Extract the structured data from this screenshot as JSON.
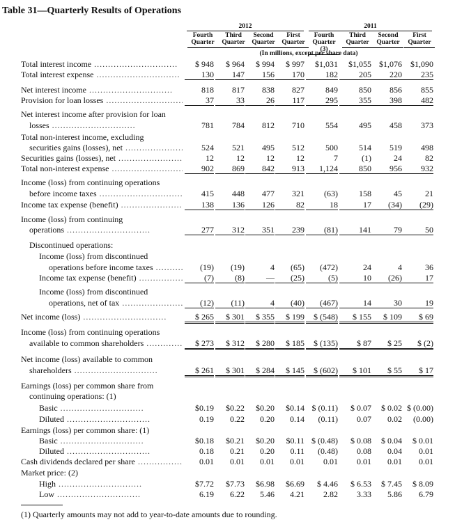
{
  "title": "Table 31—Quarterly Results of Operations",
  "years": [
    "2012",
    "2011"
  ],
  "columns": [
    "Fourth Quarter",
    "Third Quarter",
    "Second Quarter",
    "First Quarter",
    "Fourth Quarter (3)",
    "Third Quarter",
    "Second Quarter",
    "First Quarter"
  ],
  "units_note": "(In millions, except per share data)",
  "rows": [
    {
      "label": "Total interest income",
      "values": [
        "$ 948",
        "$ 964",
        "$ 994",
        "$ 997",
        "$1,031",
        "$1,055",
        "$1,076",
        "$1,090"
      ]
    },
    {
      "label": "Total interest expense",
      "values": [
        "130",
        "147",
        "156",
        "170",
        "182",
        "205",
        "220",
        "235"
      ]
    },
    {
      "label": "Net interest income",
      "values": [
        "818",
        "817",
        "838",
        "827",
        "849",
        "850",
        "856",
        "855"
      ]
    },
    {
      "label": "Provision for loan losses",
      "values": [
        "37",
        "33",
        "26",
        "117",
        "295",
        "355",
        "398",
        "482"
      ]
    },
    {
      "label": "Net interest income after provision for loan",
      "values": []
    },
    {
      "label": "losses",
      "values": [
        "781",
        "784",
        "812",
        "710",
        "554",
        "495",
        "458",
        "373"
      ]
    },
    {
      "label": "Total non-interest income, excluding",
      "values": []
    },
    {
      "label": "securities gains (losses), net",
      "values": [
        "524",
        "521",
        "495",
        "512",
        "500",
        "514",
        "519",
        "498"
      ]
    },
    {
      "label": "Securities gains (losses), net",
      "values": [
        "12",
        "12",
        "12",
        "12",
        "7",
        "(1)",
        "24",
        "82"
      ]
    },
    {
      "label": "Total non-interest expense",
      "values": [
        "902",
        "869",
        "842",
        "913",
        "1,124",
        "850",
        "956",
        "932"
      ]
    },
    {
      "label": "Income (loss) from continuing operations",
      "values": []
    },
    {
      "label": "before income taxes",
      "values": [
        "415",
        "448",
        "477",
        "321",
        "(63)",
        "158",
        "45",
        "21"
      ]
    },
    {
      "label": "Income tax expense (benefit)",
      "values": [
        "138",
        "136",
        "126",
        "82",
        "18",
        "17",
        "(34)",
        "(29)"
      ]
    },
    {
      "label": "Income (loss) from continuing",
      "values": []
    },
    {
      "label": "operations",
      "values": [
        "277",
        "312",
        "351",
        "239",
        "(81)",
        "141",
        "79",
        "50"
      ]
    },
    {
      "label": "Discontinued operations:",
      "values": []
    },
    {
      "label": "Income (loss) from discontinued",
      "values": []
    },
    {
      "label": "operations before income taxes",
      "values": [
        "(19)",
        "(19)",
        "4",
        "(65)",
        "(472)",
        "24",
        "4",
        "36"
      ]
    },
    {
      "label": "Income tax expense (benefit)",
      "values": [
        "(7)",
        "(8)",
        "—",
        "(25)",
        "(5)",
        "10",
        "(26)",
        "17"
      ]
    },
    {
      "label": "Income (loss) from discontinued",
      "values": []
    },
    {
      "label": "operations, net of tax",
      "values": [
        "(12)",
        "(11)",
        "4",
        "(40)",
        "(467)",
        "14",
        "30",
        "19"
      ]
    },
    {
      "label": "Net income (loss)",
      "values": [
        "$ 265",
        "$ 301",
        "$ 355",
        "$ 199",
        "$ (548)",
        "$ 155",
        "$ 109",
        "$ 69"
      ]
    },
    {
      "label": "Income (loss) from continuing operations",
      "values": []
    },
    {
      "label": "available to common shareholders",
      "values": [
        "$ 273",
        "$ 312",
        "$ 280",
        "$ 185",
        "$ (135)",
        "$ 87",
        "$ 25",
        "$ (2)"
      ]
    },
    {
      "label": "Net income (loss) available to common",
      "values": []
    },
    {
      "label": "shareholders",
      "values": [
        "$ 261",
        "$ 301",
        "$ 284",
        "$ 145",
        "$ (602)",
        "$ 101",
        "$ 55",
        "$ 17"
      ]
    },
    {
      "label": "Earnings (loss) per common share from",
      "values": []
    },
    {
      "label": "continuing operations: (1)",
      "values": []
    },
    {
      "label": "Basic",
      "values": [
        "$0.19",
        "$0.22",
        "$0.20",
        "$0.14",
        "$ (0.11)",
        "$ 0.07",
        "$ 0.02",
        "$ (0.00)"
      ]
    },
    {
      "label": "Diluted",
      "values": [
        "0.19",
        "0.22",
        "0.20",
        "0.14",
        "(0.11)",
        "0.07",
        "0.02",
        "(0.00)"
      ]
    },
    {
      "label": "Earnings (loss) per common share: (1)",
      "values": []
    },
    {
      "label": "Basic",
      "values": [
        "$0.18",
        "$0.21",
        "$0.20",
        "$0.11",
        "$ (0.48)",
        "$ 0.08",
        "$ 0.04",
        "$ 0.01"
      ]
    },
    {
      "label": "Diluted",
      "values": [
        "0.18",
        "0.21",
        "0.20",
        "0.11",
        "(0.48)",
        "0.08",
        "0.04",
        "0.01"
      ]
    },
    {
      "label": "Cash dividends declared per share",
      "values": [
        "0.01",
        "0.01",
        "0.01",
        "0.01",
        "0.01",
        "0.01",
        "0.01",
        "0.01"
      ]
    },
    {
      "label": "Market price: (2)",
      "values": []
    },
    {
      "label": "High",
      "values": [
        "$7.72",
        "$7.73",
        "$6.98",
        "$6.69",
        "$ 4.46",
        "$ 6.53",
        "$ 7.45",
        "$ 8.09"
      ]
    },
    {
      "label": "Low",
      "values": [
        "6.19",
        "6.22",
        "5.46",
        "4.21",
        "2.82",
        "3.33",
        "5.86",
        "6.79"
      ]
    }
  ],
  "footnote": "(1) Quarterly amounts may not add to year-to-date amounts due to rounding."
}
